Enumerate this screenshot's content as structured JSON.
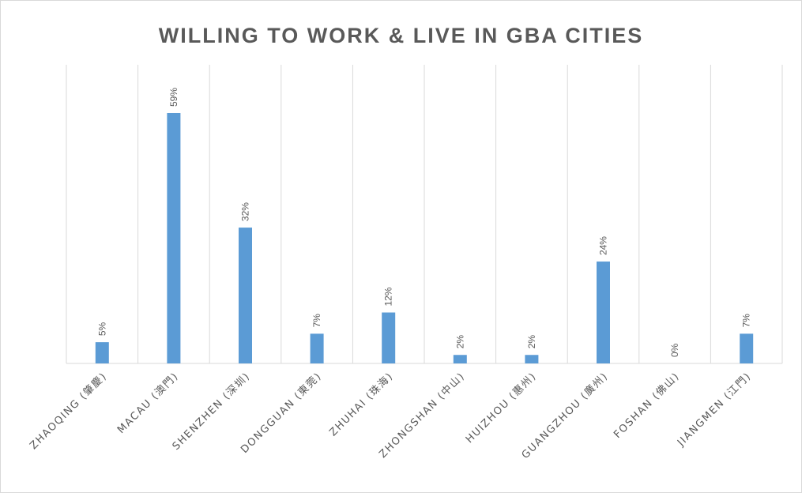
{
  "chart_data": {
    "type": "bar",
    "title": "WILLING TO WORK & LIVE IN GBA CITIES",
    "xlabel": "",
    "ylabel": "",
    "categories": [
      "ZHAOQING (肇慶)",
      "MACAU (澳門)",
      "SHENZHEN (深圳)",
      "DONGGUAN (東莞)",
      "ZHUHAI (珠海)",
      "ZHONGSHAN (中山)",
      "HUIZHOU (惠州)",
      "GUANGZHOU (廣州)",
      "FOSHAN (佛山)",
      "JIANGMEN (江門)"
    ],
    "values": [
      5,
      59,
      32,
      7,
      12,
      2,
      2,
      24,
      0,
      7
    ],
    "data_labels": [
      "5%",
      "59%",
      "32%",
      "7%",
      "12%",
      "2%",
      "2%",
      "24%",
      "0%",
      "7%"
    ],
    "ylim": [
      0,
      70
    ],
    "grid": "vertical",
    "bar_color": "#5b9bd5",
    "grid_color": "#d9d9d9",
    "text_color": "#595959"
  }
}
